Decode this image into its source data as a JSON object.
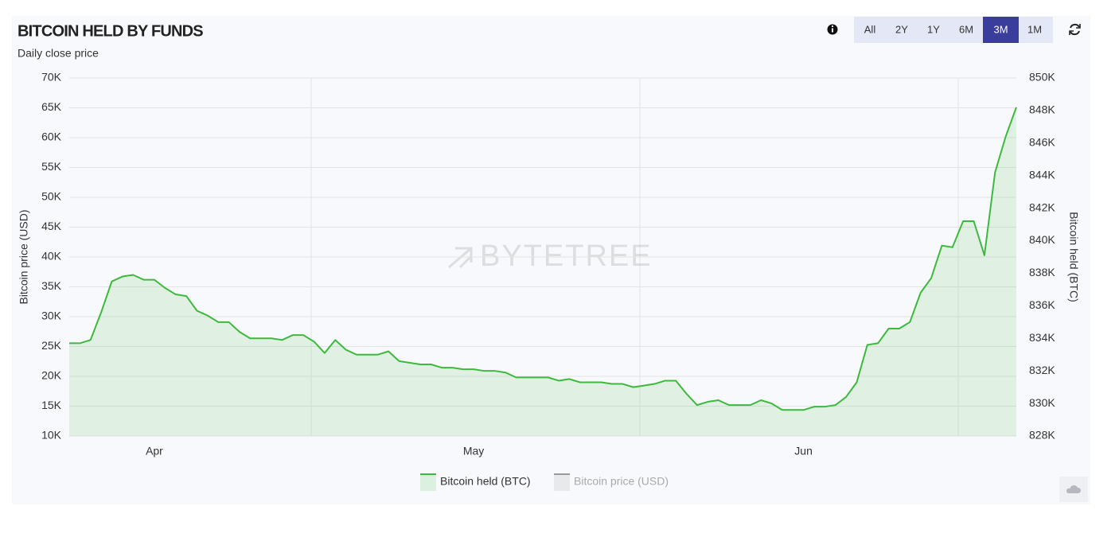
{
  "chart_data": {
    "type": "area",
    "title": "BITCOIN HELD BY FUNDS",
    "subtitle": "Daily close price",
    "watermark": "BYTETREE",
    "range_buttons": [
      "All",
      "2Y",
      "1Y",
      "6M",
      "3M",
      "1M"
    ],
    "active_range_index": 4,
    "y_label": "Bitcoin price (USD)",
    "y2_label": "Bitcoin held (BTC)",
    "categories": [
      null,
      null,
      null,
      null,
      null,
      null,
      null,
      null,
      "Apr",
      null,
      null,
      null,
      null,
      null,
      null,
      null,
      null,
      null,
      null,
      null,
      null,
      null,
      null,
      null,
      null,
      null,
      null,
      null,
      null,
      null,
      null,
      null,
      null,
      null,
      null,
      null,
      null,
      null,
      "May",
      null,
      null,
      null,
      null,
      null,
      null,
      null,
      null,
      null,
      null,
      null,
      null,
      null,
      null,
      null,
      null,
      null,
      null,
      null,
      null,
      null,
      null,
      null,
      null,
      null,
      null,
      null,
      null,
      null,
      null,
      "Jun",
      null,
      null,
      null,
      null,
      null,
      null,
      null,
      null,
      null,
      null,
      null,
      null,
      null,
      null,
      null,
      null,
      null,
      null,
      null,
      null
    ],
    "series": [
      {
        "name": "Bitcoin held (BTC)",
        "color": "#3dba3d",
        "axis": "y2",
        "visible": true,
        "values": [
          833700,
          833700,
          833900,
          835600,
          837500,
          837800,
          837900,
          837600,
          837600,
          837100,
          836700,
          836600,
          835700,
          835400,
          835000,
          835000,
          834400,
          834000,
          834000,
          834000,
          833900,
          834200,
          834200,
          833800,
          833100,
          833900,
          833300,
          833000,
          833000,
          833000,
          833200,
          832600,
          832500,
          832400,
          832400,
          832200,
          832200,
          832100,
          832100,
          832000,
          832000,
          831900,
          831600,
          831600,
          831600,
          831600,
          831400,
          831500,
          831300,
          831300,
          831300,
          831200,
          831200,
          831000,
          831100,
          831200,
          831400,
          831400,
          830600,
          829900,
          830100,
          830200,
          829900,
          829900,
          829900,
          830200,
          830000,
          829600,
          829600,
          829600,
          829800,
          829800,
          829900,
          830400,
          831300,
          833600,
          833700,
          834600,
          834600,
          835000,
          836800,
          837700,
          839700,
          839600,
          841200,
          841200,
          839100,
          844200,
          846400,
          848200
        ]
      },
      {
        "name": "Bitcoin price (USD)",
        "color": "#9a9a9a",
        "axis": "y",
        "visible": false
      }
    ],
    "ylim": [
      10000,
      70000
    ],
    "yticks": [
      {
        "value": 10000,
        "label": "10K"
      },
      {
        "value": 15000,
        "label": "15K"
      },
      {
        "value": 20000,
        "label": "20K"
      },
      {
        "value": 25000,
        "label": "25K"
      },
      {
        "value": 30000,
        "label": "30K"
      },
      {
        "value": 35000,
        "label": "35K"
      },
      {
        "value": 40000,
        "label": "40K"
      },
      {
        "value": 45000,
        "label": "45K"
      },
      {
        "value": 50000,
        "label": "50K"
      },
      {
        "value": 55000,
        "label": "55K"
      },
      {
        "value": 60000,
        "label": "60K"
      },
      {
        "value": 65000,
        "label": "65K"
      },
      {
        "value": 70000,
        "label": "70K"
      }
    ],
    "y2lim": [
      828000,
      850000
    ],
    "y2ticks": [
      {
        "value": 828000,
        "label": "828K"
      },
      {
        "value": 830000,
        "label": "830K"
      },
      {
        "value": 832000,
        "label": "832K"
      },
      {
        "value": 834000,
        "label": "834K"
      },
      {
        "value": 836000,
        "label": "836K"
      },
      {
        "value": 838000,
        "label": "838K"
      },
      {
        "value": 840000,
        "label": "840K"
      },
      {
        "value": 842000,
        "label": "842K"
      },
      {
        "value": 844000,
        "label": "844K"
      },
      {
        "value": 846000,
        "label": "846K"
      },
      {
        "value": 848000,
        "label": "848K"
      },
      {
        "value": 850000,
        "label": "850K"
      }
    ],
    "grid": true
  }
}
